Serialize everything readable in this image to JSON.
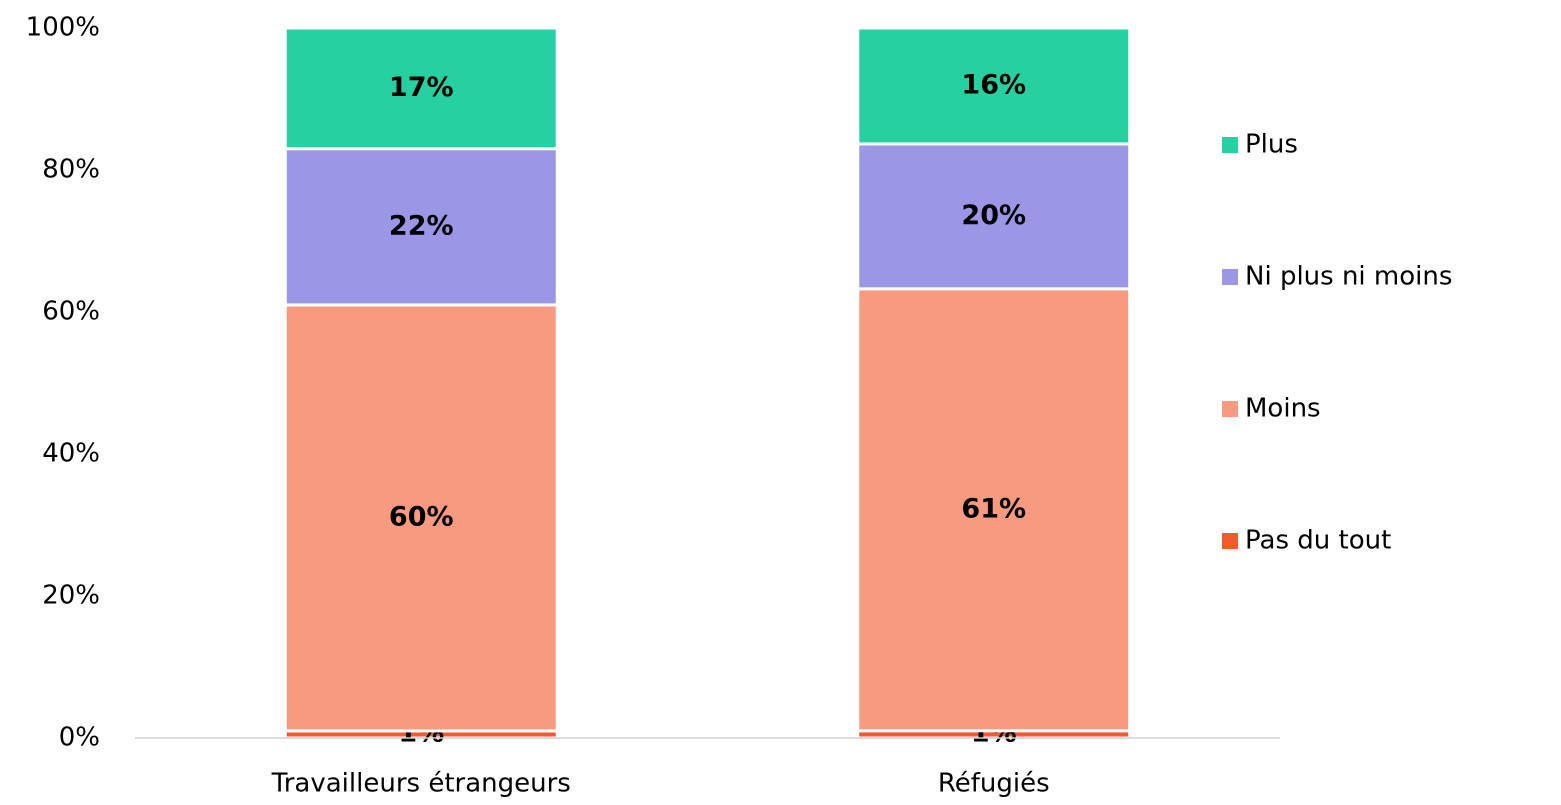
{
  "chart_data": {
    "type": "bar",
    "stacking": "percent",
    "categories": [
      "Travailleurs étrangeurs",
      "Réfugiés"
    ],
    "series": [
      {
        "name": "Pas du tout",
        "color": "#f15a2b",
        "values": [
          1,
          1
        ],
        "value_labels": [
          "1%",
          "1%"
        ]
      },
      {
        "name": "Moins",
        "color": "#f79a7f",
        "values": [
          60,
          61
        ],
        "value_labels": [
          "60%",
          "61%"
        ]
      },
      {
        "name": "Ni plus ni moins",
        "color": "#9b97e6",
        "values": [
          22,
          20
        ],
        "value_labels": [
          "22%",
          "20%"
        ]
      },
      {
        "name": "Plus",
        "color": "#26d0a0",
        "values": [
          17,
          16
        ],
        "value_labels": [
          "17%",
          "16%"
        ]
      }
    ],
    "ylim": [
      0,
      100
    ],
    "yticks": [
      {
        "value": 0,
        "label": "0%"
      },
      {
        "value": 20,
        "label": "20%"
      },
      {
        "value": 40,
        "label": "40%"
      },
      {
        "value": 60,
        "label": "60%"
      },
      {
        "value": 80,
        "label": "80%"
      },
      {
        "value": 100,
        "label": "100%"
      }
    ],
    "legend": "right"
  }
}
